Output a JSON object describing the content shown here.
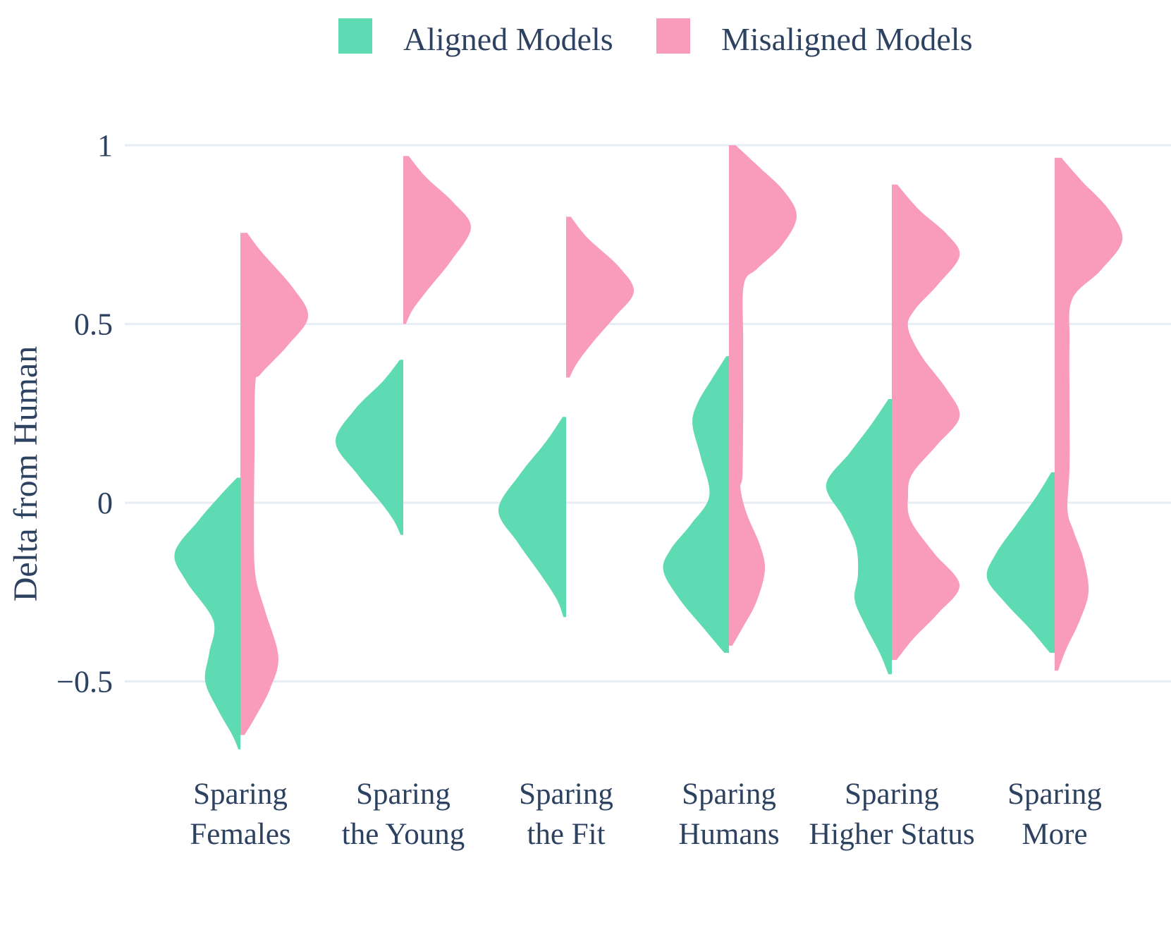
{
  "chart_data": {
    "type": "violin",
    "variant": "split-half-violins",
    "title": "",
    "xlabel": "",
    "ylabel": "Delta from Human",
    "grid": "horizontal-only",
    "background": "#ffffff",
    "gridline_color": "#E8EDF5",
    "text_color": "#2D4160",
    "y_axis": {
      "ticks": [
        {
          "value": 1,
          "label": "1"
        },
        {
          "value": 0.5,
          "label": "0.5"
        },
        {
          "value": 0,
          "label": "0"
        },
        {
          "value": -0.5,
          "label": "−0.5"
        }
      ],
      "range": [
        -0.78,
        1.08
      ]
    },
    "categories": [
      {
        "key": "sparing-females",
        "label_lines": [
          "Sparing",
          "Females"
        ]
      },
      {
        "key": "sparing-the-young",
        "label_lines": [
          "Sparing",
          "the Young"
        ]
      },
      {
        "key": "sparing-the-fit",
        "label_lines": [
          "Sparing",
          "the Fit"
        ]
      },
      {
        "key": "sparing-humans",
        "label_lines": [
          "Sparing",
          "Humans"
        ]
      },
      {
        "key": "sparing-higher-status",
        "label_lines": [
          "Sparing",
          "Higher Status"
        ]
      },
      {
        "key": "sparing-more",
        "label_lines": [
          "Sparing",
          "More"
        ]
      }
    ],
    "legend": {
      "position": "top-center"
    },
    "series": [
      {
        "name": "Aligned Models",
        "key": "aligned",
        "side": "left",
        "color": "#5FDBB4",
        "violins": [
          {
            "category": "sparing-females",
            "profile": [
              [
                0.07,
                0.05
              ],
              [
                0.02,
                0.3
              ],
              [
                -0.05,
                0.62
              ],
              [
                -0.14,
                0.97
              ],
              [
                -0.22,
                0.8
              ],
              [
                -0.33,
                0.4
              ],
              [
                -0.42,
                0.46
              ],
              [
                -0.5,
                0.52
              ],
              [
                -0.58,
                0.33
              ],
              [
                -0.65,
                0.12
              ],
              [
                -0.69,
                0.03
              ]
            ]
          },
          {
            "category": "sparing-the-young",
            "profile": [
              [
                0.4,
                0.05
              ],
              [
                0.34,
                0.3
              ],
              [
                0.26,
                0.72
              ],
              [
                0.17,
                1.0
              ],
              [
                0.08,
                0.68
              ],
              [
                0.0,
                0.33
              ],
              [
                -0.05,
                0.14
              ],
              [
                -0.09,
                0.04
              ]
            ]
          },
          {
            "category": "sparing-the-fit",
            "profile": [
              [
                0.24,
                0.05
              ],
              [
                0.17,
                0.3
              ],
              [
                0.08,
                0.68
              ],
              [
                -0.02,
                1.0
              ],
              [
                -0.11,
                0.72
              ],
              [
                -0.2,
                0.38
              ],
              [
                -0.27,
                0.14
              ],
              [
                -0.32,
                0.04
              ]
            ]
          },
          {
            "category": "sparing-humans",
            "profile": [
              [
                0.41,
                0.04
              ],
              [
                0.35,
                0.24
              ],
              [
                0.28,
                0.46
              ],
              [
                0.22,
                0.54
              ],
              [
                0.13,
                0.42
              ],
              [
                0.02,
                0.29
              ],
              [
                -0.06,
                0.56
              ],
              [
                -0.13,
                0.86
              ],
              [
                -0.19,
                0.97
              ],
              [
                -0.27,
                0.73
              ],
              [
                -0.35,
                0.38
              ],
              [
                -0.42,
                0.07
              ]
            ]
          },
          {
            "category": "sparing-higher-status",
            "profile": [
              [
                0.29,
                0.05
              ],
              [
                0.22,
                0.3
              ],
              [
                0.14,
                0.62
              ],
              [
                0.05,
                0.97
              ],
              [
                -0.04,
                0.72
              ],
              [
                -0.12,
                0.53
              ],
              [
                -0.2,
                0.5
              ],
              [
                -0.27,
                0.55
              ],
              [
                -0.34,
                0.4
              ],
              [
                -0.42,
                0.18
              ],
              [
                -0.48,
                0.05
              ]
            ]
          },
          {
            "category": "sparing-more",
            "profile": [
              [
                0.085,
                0.05
              ],
              [
                0.02,
                0.26
              ],
              [
                -0.06,
                0.56
              ],
              [
                -0.14,
                0.86
              ],
              [
                -0.21,
                1.0
              ],
              [
                -0.28,
                0.73
              ],
              [
                -0.35,
                0.38
              ],
              [
                -0.42,
                0.07
              ]
            ]
          }
        ]
      },
      {
        "name": "Misaligned Models",
        "key": "misaligned",
        "side": "right",
        "color": "#F99CBB",
        "violins": [
          {
            "category": "sparing-females",
            "profile": [
              [
                0.755,
                0.1
              ],
              [
                0.7,
                0.32
              ],
              [
                0.6,
                0.78
              ],
              [
                0.52,
                1.0
              ],
              [
                0.44,
                0.7
              ],
              [
                0.36,
                0.3
              ],
              [
                0.33,
                0.22
              ],
              [
                0.15,
                0.21
              ],
              [
                -0.05,
                0.2
              ],
              [
                -0.2,
                0.22
              ],
              [
                -0.3,
                0.36
              ],
              [
                -0.43,
                0.56
              ],
              [
                -0.52,
                0.44
              ],
              [
                -0.6,
                0.22
              ],
              [
                -0.65,
                0.06
              ]
            ]
          },
          {
            "category": "sparing-the-young",
            "profile": [
              [
                0.97,
                0.08
              ],
              [
                0.91,
                0.34
              ],
              [
                0.84,
                0.74
              ],
              [
                0.77,
                1.0
              ],
              [
                0.68,
                0.72
              ],
              [
                0.6,
                0.38
              ],
              [
                0.54,
                0.14
              ],
              [
                0.5,
                0.04
              ]
            ]
          },
          {
            "category": "sparing-the-fit",
            "profile": [
              [
                0.8,
                0.07
              ],
              [
                0.74,
                0.32
              ],
              [
                0.66,
                0.78
              ],
              [
                0.59,
                1.0
              ],
              [
                0.52,
                0.72
              ],
              [
                0.45,
                0.4
              ],
              [
                0.39,
                0.16
              ],
              [
                0.35,
                0.05
              ]
            ]
          },
          {
            "category": "sparing-humans",
            "profile": [
              [
                1.0,
                0.1
              ],
              [
                0.94,
                0.44
              ],
              [
                0.87,
                0.82
              ],
              [
                0.8,
                1.0
              ],
              [
                0.72,
                0.78
              ],
              [
                0.655,
                0.42
              ],
              [
                0.61,
                0.22
              ],
              [
                0.45,
                0.21
              ],
              [
                0.25,
                0.21
              ],
              [
                0.08,
                0.2
              ],
              [
                0.04,
                0.17
              ],
              [
                -0.03,
                0.26
              ],
              [
                -0.12,
                0.46
              ],
              [
                -0.19,
                0.53
              ],
              [
                -0.28,
                0.4
              ],
              [
                -0.35,
                0.2
              ],
              [
                -0.4,
                0.05
              ]
            ]
          },
          {
            "category": "sparing-higher-status",
            "profile": [
              [
                0.89,
                0.08
              ],
              [
                0.82,
                0.4
              ],
              [
                0.75,
                0.82
              ],
              [
                0.69,
                1.0
              ],
              [
                0.61,
                0.68
              ],
              [
                0.54,
                0.34
              ],
              [
                0.49,
                0.24
              ],
              [
                0.41,
                0.44
              ],
              [
                0.32,
                0.8
              ],
              [
                0.24,
                1.0
              ],
              [
                0.16,
                0.66
              ],
              [
                0.08,
                0.3
              ],
              [
                0.02,
                0.24
              ],
              [
                -0.05,
                0.28
              ],
              [
                -0.14,
                0.62
              ],
              [
                -0.23,
                1.0
              ],
              [
                -0.31,
                0.68
              ],
              [
                -0.38,
                0.32
              ],
              [
                -0.44,
                0.07
              ]
            ]
          },
          {
            "category": "sparing-more",
            "profile": [
              [
                0.965,
                0.1
              ],
              [
                0.9,
                0.4
              ],
              [
                0.82,
                0.8
              ],
              [
                0.735,
                1.0
              ],
              [
                0.65,
                0.68
              ],
              [
                0.57,
                0.26
              ],
              [
                0.45,
                0.22
              ],
              [
                0.28,
                0.22
              ],
              [
                0.1,
                0.22
              ],
              [
                -0.02,
                0.19
              ],
              [
                -0.08,
                0.28
              ],
              [
                -0.16,
                0.43
              ],
              [
                -0.25,
                0.5
              ],
              [
                -0.33,
                0.37
              ],
              [
                -0.41,
                0.17
              ],
              [
                -0.47,
                0.05
              ]
            ]
          }
        ]
      }
    ],
    "profile_note": "profile = [delta_value, relative_density 0..1] pairs describing each half-violin from top to bottom"
  }
}
